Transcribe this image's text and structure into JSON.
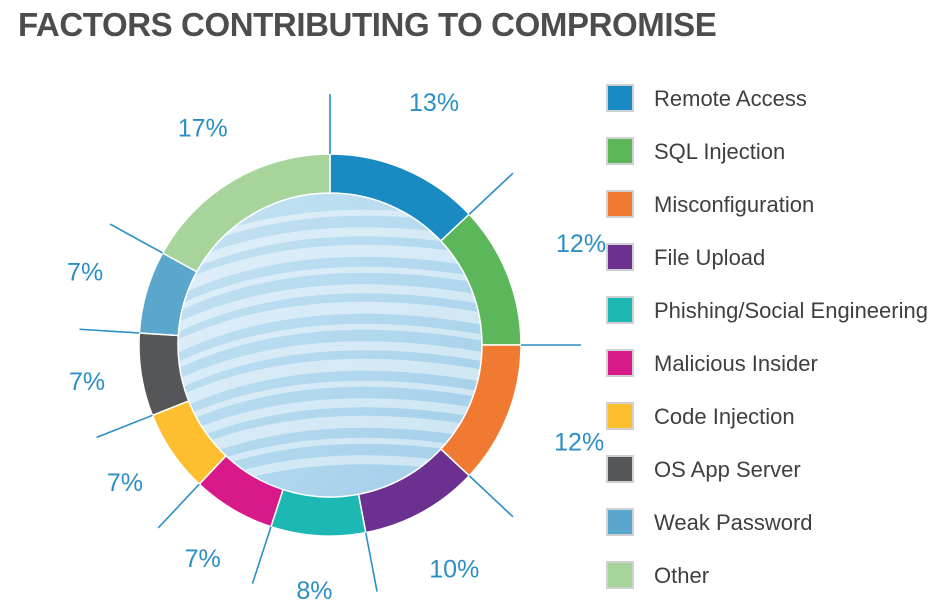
{
  "title": "FACTORS CONTRIBUTING TO COMPROMISE",
  "chart_data": {
    "type": "pie",
    "style": "donut",
    "categories": [
      "Remote Access",
      "SQL Injection",
      "Misconfiguration",
      "File Upload",
      "Phishing/Social Engineering",
      "Malicious Insider",
      "Code Injection",
      "OS App Server",
      "Weak Password",
      "Other"
    ],
    "values": [
      13,
      12,
      12,
      10,
      8,
      7,
      7,
      7,
      7,
      17
    ],
    "labels": [
      "13%",
      "12%",
      "12%",
      "10%",
      "8%",
      "7%",
      "7%",
      "7%",
      "7%",
      "17%"
    ],
    "colors": [
      "#1a8ac3",
      "#5cb75a",
      "#f07a32",
      "#6b3090",
      "#1db7b4",
      "#d7198a",
      "#fdbf30",
      "#545658",
      "#5ba6cc",
      "#a6d49b"
    ],
    "legend_position": "right"
  }
}
